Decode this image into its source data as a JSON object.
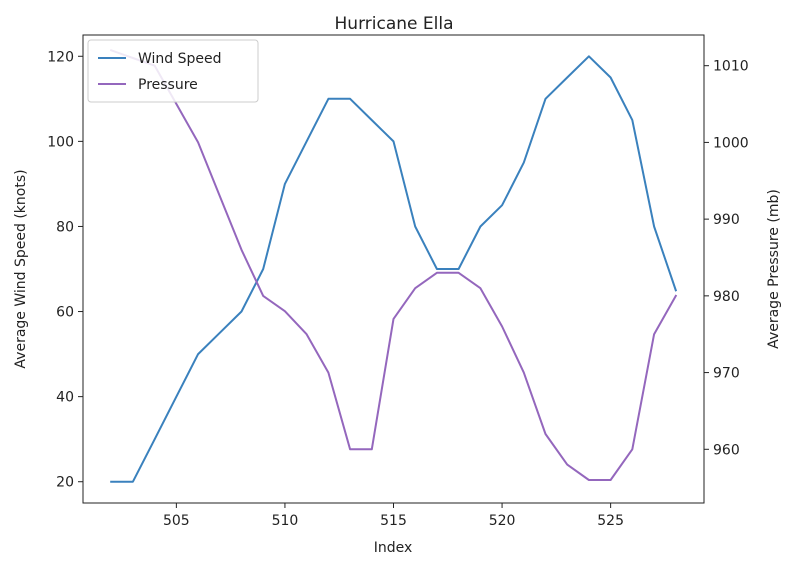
{
  "chart_data": {
    "type": "line",
    "title": "Hurricane Ella",
    "xlabel": "Index",
    "ylabel_left": "Average Wind Speed (knots)",
    "ylabel_right": "Average Pressure (mb)",
    "xlim": [
      500.7,
      529.3
    ],
    "ylim_left": [
      15,
      125
    ],
    "ylim_right": [
      953,
      1014
    ],
    "x_ticks": [
      505,
      510,
      515,
      520,
      525
    ],
    "y_ticks_left": [
      20,
      40,
      60,
      80,
      100,
      120
    ],
    "y_ticks_right": [
      960,
      970,
      980,
      990,
      1000,
      1010
    ],
    "grid": false,
    "legend_position": "upper-left",
    "x": [
      502,
      503,
      504,
      505,
      506,
      507,
      508,
      509,
      510,
      511,
      512,
      513,
      514,
      515,
      516,
      517,
      518,
      519,
      520,
      521,
      522,
      523,
      524,
      525,
      526,
      527,
      528
    ],
    "series": [
      {
        "name": "Wind Speed",
        "axis": "left",
        "color": "#3a81bd",
        "values": [
          20,
          20,
          30,
          40,
          50,
          55,
          60,
          70,
          90,
          100,
          110,
          110,
          105,
          100,
          80,
          70,
          70,
          80,
          85,
          95,
          110,
          115,
          120,
          115,
          105,
          80,
          65
        ]
      },
      {
        "name": "Pressure",
        "axis": "right",
        "color": "#9467bd",
        "values": [
          1012,
          1011,
          1010,
          1005,
          1000,
          993,
          986,
          980,
          978,
          975,
          970,
          960,
          960,
          977,
          981,
          983,
          983,
          981,
          976,
          970,
          962,
          958,
          956,
          956,
          960,
          975,
          980
        ]
      }
    ]
  }
}
